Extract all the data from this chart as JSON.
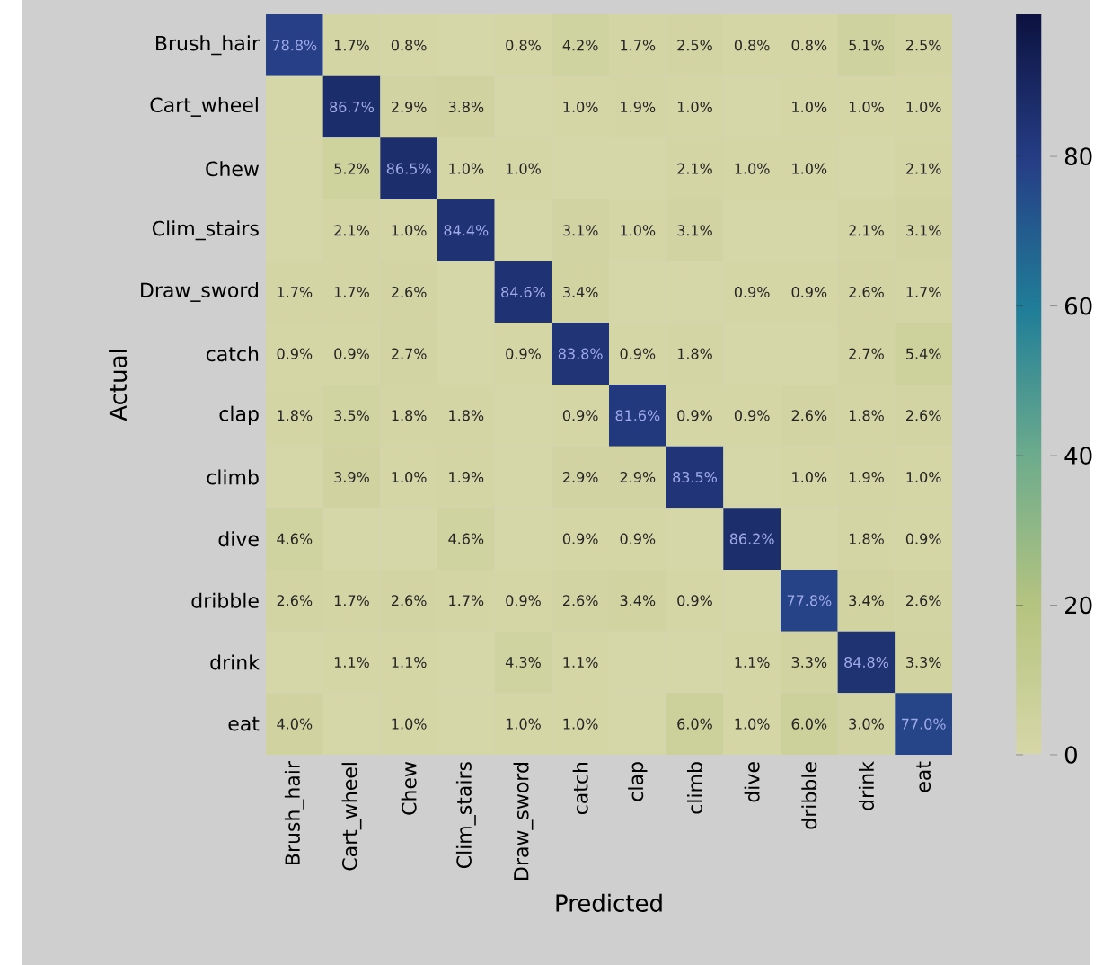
{
  "chart_data": {
    "type": "heatmap",
    "xlabel": "Predicted",
    "ylabel": "Actual",
    "categories": [
      "Brush_hair",
      "Cart_wheel",
      "Chew",
      "Clim_stairs",
      "Draw_sword",
      "catch",
      "clap",
      "climb",
      "dive",
      "dribble",
      "drink",
      "eat"
    ],
    "y_categories": [
      "Brush_hair",
      "Cart_wheel",
      "Chew",
      "Clim_stairs",
      "Draw_sword",
      "catch",
      "clap",
      "climb",
      "dive",
      "dribble",
      "drink",
      "eat"
    ],
    "cells": [
      [
        78.8,
        1.7,
        0.8,
        0,
        0.8,
        4.2,
        1.7,
        2.5,
        0.8,
        0.8,
        5.1,
        2.5
      ],
      [
        0,
        86.7,
        2.9,
        3.8,
        0,
        1.0,
        1.9,
        1.0,
        0,
        1.0,
        1.0,
        1.0
      ],
      [
        0,
        5.2,
        86.5,
        1.0,
        1.0,
        0,
        0,
        2.1,
        1.0,
        1.0,
        0,
        2.1
      ],
      [
        0,
        2.1,
        1.0,
        84.4,
        0,
        3.1,
        1.0,
        3.1,
        0,
        0,
        2.1,
        3.1
      ],
      [
        1.7,
        1.7,
        2.6,
        0,
        84.6,
        3.4,
        0,
        0,
        0.9,
        0.9,
        2.6,
        1.7
      ],
      [
        0.9,
        0.9,
        2.7,
        0,
        0.9,
        83.8,
        0.9,
        1.8,
        0,
        0,
        2.7,
        5.4
      ],
      [
        1.8,
        3.5,
        1.8,
        1.8,
        0,
        0.9,
        81.6,
        0.9,
        0.9,
        2.6,
        1.8,
        2.6
      ],
      [
        0,
        3.9,
        1.0,
        1.9,
        0,
        2.9,
        2.9,
        83.5,
        0,
        1.0,
        1.9,
        1.0
      ],
      [
        4.6,
        0,
        0,
        4.6,
        0,
        0.9,
        0.9,
        0,
        86.2,
        0,
        1.8,
        0.9
      ],
      [
        2.6,
        1.7,
        2.6,
        1.7,
        0.9,
        2.6,
        3.4,
        0.9,
        0,
        77.8,
        3.4,
        2.6
      ],
      [
        0,
        1.1,
        1.1,
        0,
        4.3,
        1.1,
        0,
        0,
        1.1,
        3.3,
        84.8,
        3.3
      ],
      [
        4.0,
        0,
        1.0,
        0,
        1.0,
        1.0,
        0,
        6.0,
        1.0,
        6.0,
        3.0,
        77.0
      ]
    ],
    "cell_labels": [
      [
        "78.8%",
        "1.7%",
        "0.8%",
        null,
        "0.8%",
        "4.2%",
        "1.7%",
        "2.5%",
        "0.8%",
        "0.8%",
        "5.1%",
        "2.5%"
      ],
      [
        null,
        "86.7%",
        "2.9%",
        "3.8%",
        null,
        "1.0%",
        "1.9%",
        "1.0%",
        null,
        "1.0%",
        "1.0%",
        "1.0%"
      ],
      [
        null,
        "5.2%",
        "86.5%",
        "1.0%",
        "1.0%",
        null,
        null,
        "2.1%",
        "1.0%",
        "1.0%",
        null,
        "2.1%"
      ],
      [
        null,
        "2.1%",
        "1.0%",
        "84.4%",
        null,
        "3.1%",
        "1.0%",
        "3.1%",
        null,
        null,
        "2.1%",
        "3.1%"
      ],
      [
        "1.7%",
        "1.7%",
        "2.6%",
        null,
        "84.6%",
        "3.4%",
        null,
        null,
        "0.9%",
        "0.9%",
        "2.6%",
        "1.7%"
      ],
      [
        "0.9%",
        "0.9%",
        "2.7%",
        null,
        "0.9%",
        "83.8%",
        "0.9%",
        "1.8%",
        null,
        null,
        "2.7%",
        "5.4%"
      ],
      [
        "1.8%",
        "3.5%",
        "1.8%",
        "1.8%",
        null,
        "0.9%",
        "81.6%",
        "0.9%",
        "0.9%",
        "2.6%",
        "1.8%",
        "2.6%"
      ],
      [
        null,
        "3.9%",
        "1.0%",
        "1.9%",
        null,
        "2.9%",
        "2.9%",
        "83.5%",
        null,
        "1.0%",
        "1.9%",
        "1.0%"
      ],
      [
        "4.6%",
        null,
        null,
        "4.6%",
        null,
        "0.9%",
        "0.9%",
        null,
        "86.2%",
        null,
        "1.8%",
        "0.9%"
      ],
      [
        "2.6%",
        "1.7%",
        "2.6%",
        "1.7%",
        "0.9%",
        "2.6%",
        "3.4%",
        "0.9%",
        null,
        "77.8%",
        "3.4%",
        "2.6%"
      ],
      [
        null,
        "1.1%",
        "1.1%",
        null,
        "4.3%",
        "1.1%",
        null,
        null,
        "1.1%",
        "3.3%",
        "84.8%",
        "3.3%"
      ],
      [
        "4.0%",
        null,
        "1.0%",
        null,
        "1.0%",
        "1.0%",
        null,
        "6.0%",
        "1.0%",
        "6.0%",
        "3.0%",
        "77.0%"
      ]
    ],
    "clim": [
      0,
      99
    ],
    "cticks": [
      0,
      20,
      40,
      60,
      80
    ]
  }
}
